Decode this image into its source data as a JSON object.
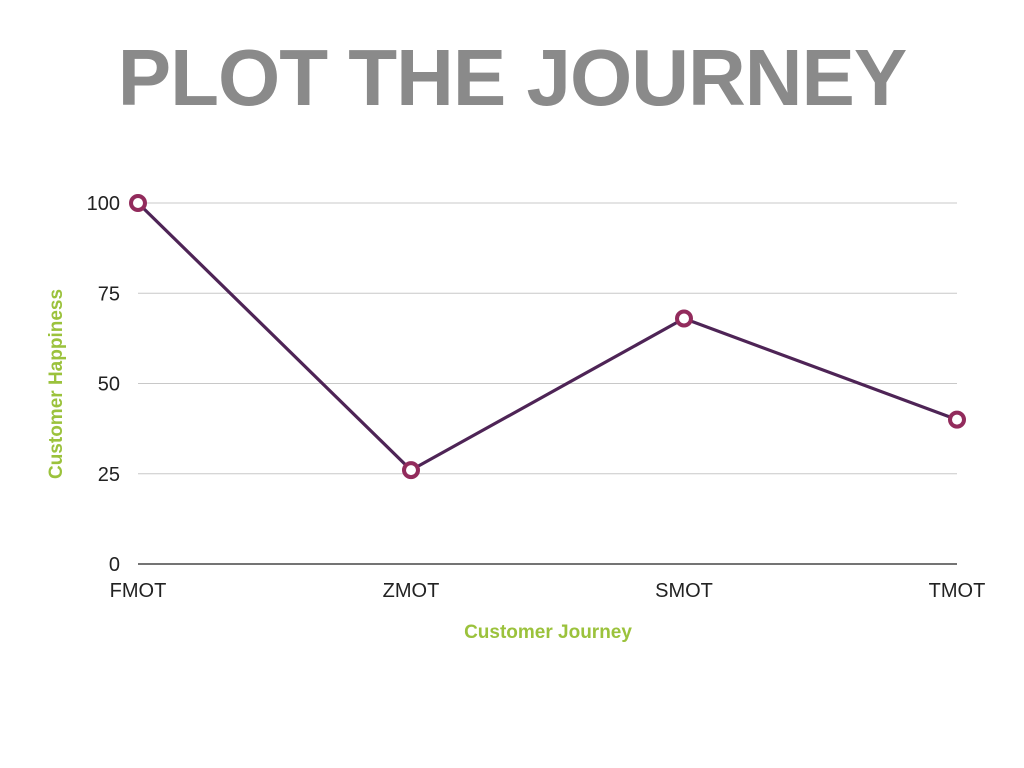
{
  "title": "PLOT THE JOURNEY",
  "chart_data": {
    "type": "line",
    "categories": [
      "FMOT",
      "ZMOT",
      "SMOT",
      "TMOT"
    ],
    "series": [
      {
        "values": [
          100,
          26,
          68,
          40
        ]
      }
    ],
    "xlabel": "Customer Journey",
    "ylabel": "Customer Happiness",
    "ylim": [
      0,
      100
    ],
    "yticks": [
      0,
      25,
      50,
      75,
      100
    ],
    "grid": true,
    "legend": "none",
    "colors": {
      "line": "#4e2456",
      "marker": "#922b5c",
      "axis_title": "#9bc23c",
      "grid": "#c8c8c8",
      "axis": "#222222"
    }
  }
}
